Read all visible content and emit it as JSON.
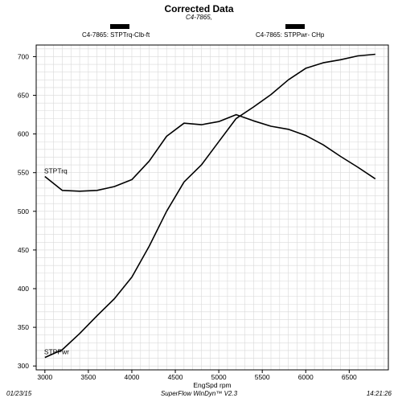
{
  "chart_data": {
    "type": "line",
    "title": "Corrected Data",
    "subtitle": "C4-7865,",
    "xlabel": "EngSpd  rpm",
    "ylabel": "",
    "xlim": [
      2900,
      6950
    ],
    "ylim": [
      295,
      715
    ],
    "x_ticks": [
      3000,
      3500,
      4000,
      4500,
      5000,
      5500,
      6000,
      6500
    ],
    "y_ticks": [
      300,
      350,
      400,
      450,
      500,
      550,
      600,
      650,
      700
    ],
    "grid": true,
    "legend": [
      {
        "label": "C4-7865: STPTrq-Clb-ft",
        "position": "top-left"
      },
      {
        "label": "C4-7865: STPPwr- CHp",
        "position": "top-right"
      }
    ],
    "series": [
      {
        "name": "STPTrq",
        "x": [
          3000,
          3200,
          3400,
          3600,
          3800,
          4000,
          4200,
          4400,
          4600,
          4800,
          5000,
          5200,
          5400,
          5600,
          5800,
          6000,
          6200,
          6400,
          6600,
          6800
        ],
        "y": [
          545,
          527,
          526,
          527,
          532,
          541,
          565,
          597,
          614,
          612,
          616,
          625,
          617,
          610,
          606,
          598,
          586,
          571,
          557,
          542
        ]
      },
      {
        "name": "STPPwr",
        "x": [
          3000,
          3200,
          3400,
          3600,
          3800,
          4000,
          4200,
          4400,
          4600,
          4800,
          5000,
          5200,
          5400,
          5600,
          5800,
          6000,
          6200,
          6400,
          6600,
          6800
        ],
        "y": [
          311,
          321,
          342,
          365,
          387,
          415,
          455,
          500,
          538,
          560,
          590,
          620,
          635,
          651,
          670,
          685,
          692,
          696,
          701,
          703
        ]
      }
    ]
  },
  "footer": {
    "date": "01/23/15",
    "software": "SuperFlow WinDyn™ V2.3",
    "time": "14:21:26"
  }
}
